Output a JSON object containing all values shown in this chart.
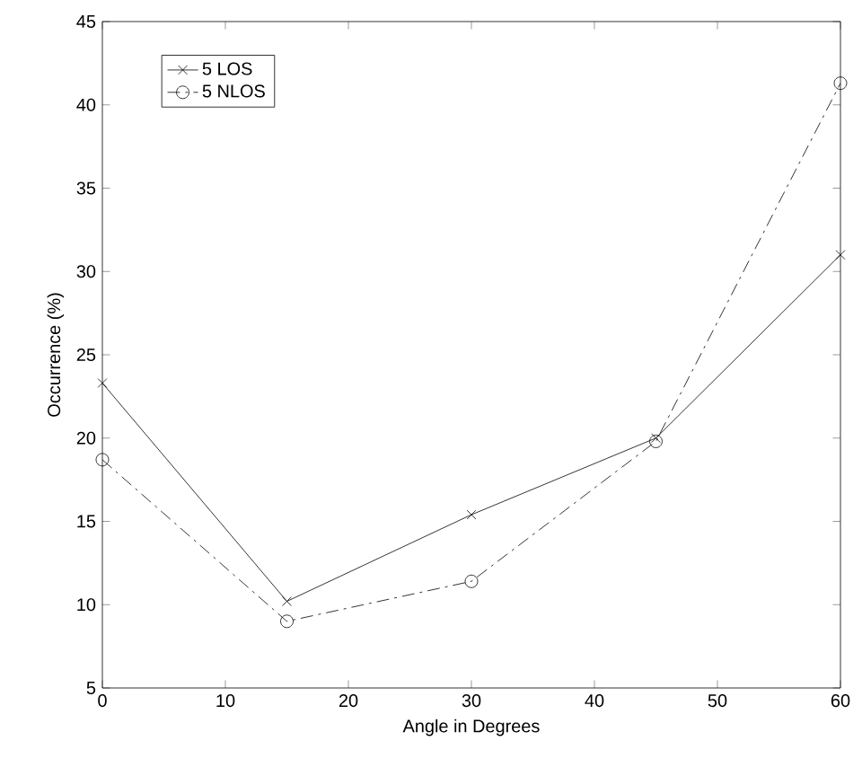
{
  "chart_data": {
    "type": "line",
    "xlabel": "Angle in Degrees",
    "ylabel": "Occurrence (%)",
    "x": [
      0,
      15,
      30,
      45,
      60
    ],
    "series": [
      {
        "name": "5 LOS",
        "color": "#000000",
        "values": [
          23.3,
          10.2,
          15.4,
          20.0,
          31.0
        ],
        "marker": "cross",
        "line_style": "solid"
      },
      {
        "name": "5 NLOS",
        "color": "#000000",
        "values": [
          18.7,
          9.0,
          11.4,
          19.8,
          41.3
        ],
        "marker": "circle",
        "line_style": "dashed"
      }
    ],
    "xlim": [
      0,
      60
    ],
    "xticks": [
      0,
      10,
      20,
      30,
      40,
      50,
      60
    ],
    "ylim": [
      5,
      45
    ],
    "yticks": [
      5,
      10,
      15,
      20,
      25,
      30,
      35,
      40,
      45
    ],
    "grid": false,
    "legend": "top left"
  }
}
